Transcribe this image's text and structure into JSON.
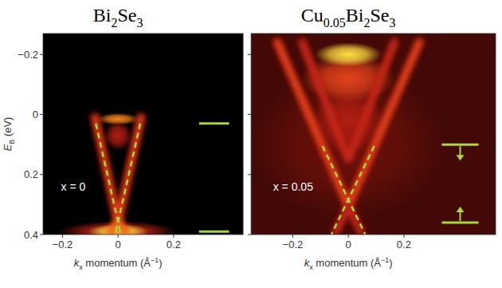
{
  "chart_data": [
    {
      "type": "line",
      "title": "Bi2Se3",
      "annotation": "x = 0",
      "x_label": "kx momentum (Å−1)",
      "y_label": "EB (eV)",
      "xlim": [
        -0.27,
        0.45
      ],
      "ylim": [
        -0.27,
        0.4
      ],
      "xticks": [
        {
          "value": -0.2,
          "label": "−0.2"
        },
        0,
        0.2
      ],
      "yticks": [
        {
          "value": -0.2,
          "label": "−0.2"
        },
        0,
        0.2,
        0.4
      ],
      "ground": 0,
      "bands": [
        {
          "x": [
            -0.085,
            0,
            0.085
          ],
          "values": [
            0.0,
            0.36,
            0.0
          ],
          "intensity": 0.7
        },
        {
          "x": [
            -0.035,
            0,
            0.035
          ],
          "values": [
            0.4,
            0.36,
            0.4
          ],
          "intensity": 0.8
        }
      ],
      "spots": [
        {
          "x": 0,
          "y": 0.015,
          "width": 0.15,
          "height": 0.04,
          "intensity": 0.88
        },
        {
          "x": 0,
          "y": 0.07,
          "width": 0.1,
          "height": 0.1,
          "intensity": 0.6
        },
        {
          "x": 0,
          "y": 0.39,
          "width": 0.42,
          "height": 0.07,
          "intensity": 0.65
        },
        {
          "x": 0,
          "y": 0.39,
          "width": 0.22,
          "height": 0.05,
          "intensity": 1
        }
      ],
      "series": [
        {
          "color": "#a8d63c",
          "line_style": "dashed",
          "x": [
            -0.08,
            0.008
          ],
          "values": [
            0.03,
            0.39
          ]
        },
        {
          "color": "#a8d63c",
          "line_style": "dashed",
          "x": [
            0.08,
            -0.008
          ],
          "values": [
            0.03,
            0.39
          ]
        }
      ],
      "levels": {
        "values": [
          0.03,
          0.39
        ],
        "arrows": false,
        "color": "#a8d63c"
      }
    },
    {
      "type": "line",
      "title": "Cu0.05Bi2Se3",
      "annotation": "x = 0.05",
      "x_label": "kx momentum (Å−1)",
      "tick_labels": "x",
      "xlim": [
        -0.35,
        0.53
      ],
      "ylim": [
        -0.27,
        0.4
      ],
      "xticks": [
        {
          "value": -0.2,
          "label": "−0.2"
        },
        0,
        0.2
      ],
      "yticks": [
        {
          "value": -0.2,
          "label": "−0.2"
        },
        0,
        0.2,
        0.4
      ],
      "ground": 0.32,
      "bands": [
        {
          "x": [
            -0.26,
            0,
            0.26
          ],
          "values": [
            -0.25,
            0.305,
            -0.25
          ],
          "intensity": 0.72
        },
        {
          "x": [
            -0.05,
            0,
            0.05
          ],
          "values": [
            0.4,
            0.305,
            0.4
          ],
          "intensity": 0.6
        },
        {
          "x": [
            -0.17,
            0,
            0.17
          ],
          "values": [
            -0.25,
            0.15,
            -0.25
          ],
          "intensity": 0.62
        }
      ],
      "spots": [
        {
          "x": 0,
          "y": 0.1,
          "width": 0.7,
          "height": 0.5,
          "intensity": 0.42
        },
        {
          "x": 0,
          "y": 0.02,
          "width": 0.26,
          "height": 0.22,
          "intensity": 0.6
        },
        {
          "x": 0,
          "y": -0.12,
          "width": 0.34,
          "height": 0.16,
          "intensity": 0.78
        },
        {
          "x": 0,
          "y": -0.2,
          "width": 0.24,
          "height": 0.08,
          "intensity": 1
        }
      ],
      "series": [
        {
          "color": "#a8d63c",
          "line_style": "dashed",
          "x": [
            -0.093,
            0.061
          ],
          "values": [
            0.105,
            0.4
          ]
        },
        {
          "color": "#a8d63c",
          "line_style": "dashed",
          "x": [
            0.093,
            -0.061
          ],
          "values": [
            0.105,
            0.4
          ]
        }
      ],
      "levels": {
        "values": [
          0.1,
          0.36
        ],
        "arrows": true,
        "color": "#a8d63c"
      }
    }
  ]
}
